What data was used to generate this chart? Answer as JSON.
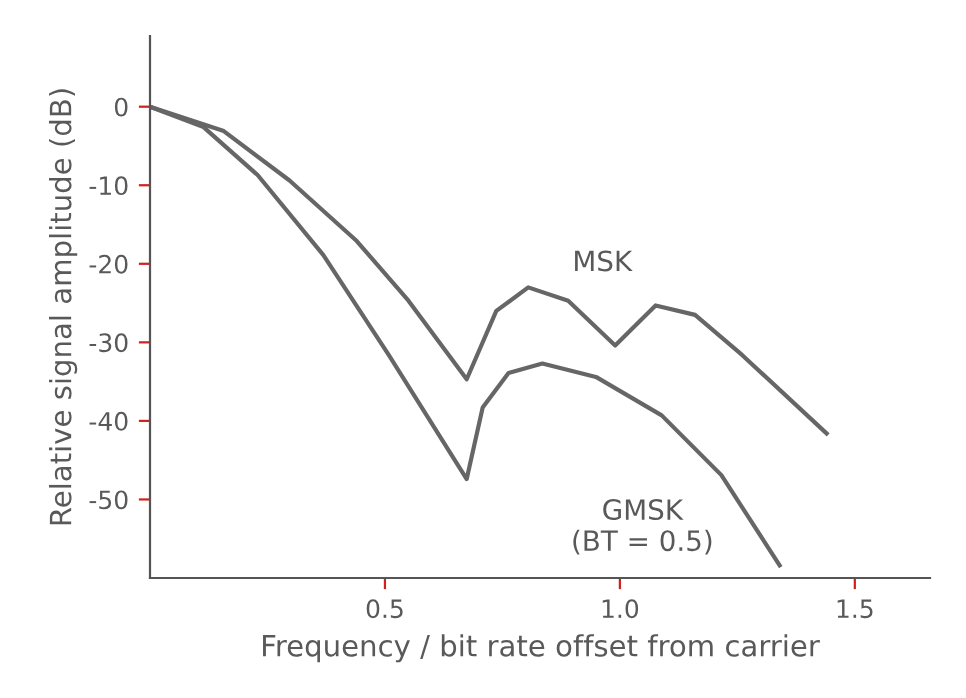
{
  "chart_data": {
    "type": "line",
    "xlabel": "Frequency / bit rate offset from carrier",
    "ylabel": "Relative signal amplitude (dB)",
    "xlim": [
      0,
      1.66
    ],
    "ylim": [
      -60,
      9
    ],
    "xticks": [
      0.5,
      {
        "value": 1.0,
        "label": "1.0"
      },
      1.5
    ],
    "yticks": [
      0,
      -10,
      -20,
      -30,
      -40,
      -50
    ],
    "grid": false,
    "legend": false,
    "marker": "none",
    "line_style": "solid",
    "series": [
      {
        "name": "MSK",
        "color": "#666666",
        "x": [
          0,
          0.157,
          0.297,
          0.44,
          0.55,
          0.674,
          0.737,
          0.805,
          0.89,
          0.99,
          1.076,
          1.16,
          1.26,
          1.44
        ],
        "values": [
          0,
          -3.1,
          -9.4,
          -17.1,
          -24.7,
          -34.7,
          -26.0,
          -23.0,
          -24.7,
          -30.4,
          -25.3,
          -26.5,
          -31.6,
          -41.6
        ]
      },
      {
        "name": "GMSK\n(BT = 0.5)",
        "color": "#666666",
        "x": [
          0,
          0.114,
          0.229,
          0.369,
          0.508,
          0.674,
          0.708,
          0.763,
          0.835,
          0.949,
          1.089,
          1.216,
          1.34
        ],
        "values": [
          0,
          -2.6,
          -8.7,
          -18.9,
          -31.6,
          -47.4,
          -38.3,
          -33.9,
          -32.7,
          -34.4,
          -39.3,
          -46.9,
          -58.4
        ]
      }
    ]
  }
}
